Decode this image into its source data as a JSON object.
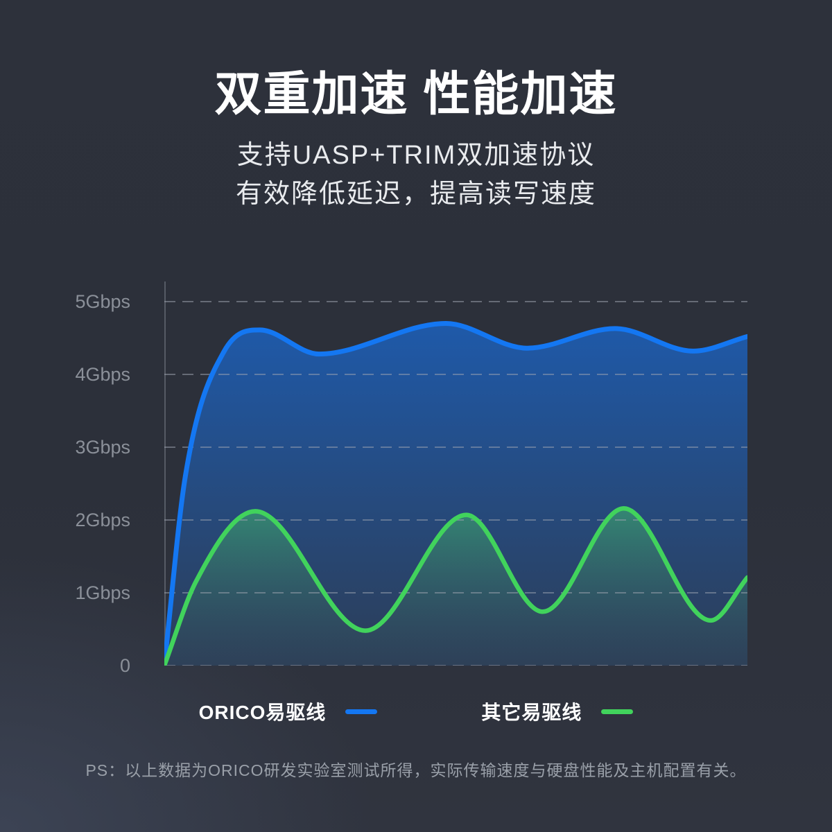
{
  "page": {
    "title": "双重加速 性能加速",
    "subtitle_line1": "支持UASP+TRIM双加速协议",
    "subtitle_line2": "有效降低延迟，提高读写速度",
    "footer_note": "PS：以上数据为ORICO研发实验室测试所得，实际传输速度与硬盘性能及主机配置有关。"
  },
  "colors": {
    "background": "#2c303a",
    "accent_blue": "#1477f2",
    "accent_green": "#41d35c",
    "grid_line": "rgba(160,166,177,0.5)",
    "axis_line": "rgba(150,157,168,0.4)",
    "axis_label": "#8b9099"
  },
  "legend": {
    "items": [
      {
        "label": "ORICO易驱线",
        "color": "#1477f2"
      },
      {
        "label": "其它易驱线",
        "color": "#41d35c"
      }
    ]
  },
  "chart_data": {
    "type": "area",
    "title": "",
    "xlabel": "",
    "ylabel": "Gbps",
    "ylim": [
      0,
      5
    ],
    "grid": "horizontal dashed",
    "legend_position": "bottom",
    "y_ticks": [
      {
        "value": 5,
        "label": "5Gbps"
      },
      {
        "value": 4,
        "label": "4Gbps"
      },
      {
        "value": 3,
        "label": "3Gbps"
      },
      {
        "value": 2,
        "label": "2Gbps"
      },
      {
        "value": 1,
        "label": "1Gbps"
      },
      {
        "value": 0,
        "label": "0"
      }
    ],
    "x_unit": "percent_of_timeline",
    "y_unit": "Gbps",
    "series": [
      {
        "name": "ORICO易驱线",
        "color": "#1477f2",
        "points": [
          [
            0,
            0
          ],
          [
            3.6,
            2.6
          ],
          [
            10.2,
            4.31
          ],
          [
            16.4,
            4.61
          ],
          [
            26.5,
            4.28
          ],
          [
            48.3,
            4.7
          ],
          [
            62.2,
            4.36
          ],
          [
            77.3,
            4.63
          ],
          [
            90.7,
            4.32
          ],
          [
            100,
            4.52
          ]
        ]
      },
      {
        "name": "其它易驱线",
        "color": "#41d35c",
        "points": [
          [
            0,
            0
          ],
          [
            5.4,
            1.15
          ],
          [
            15.6,
            2.12
          ],
          [
            34.5,
            0.48
          ],
          [
            51.8,
            2.07
          ],
          [
            64.9,
            0.74
          ],
          [
            78.8,
            2.16
          ],
          [
            93.7,
            0.62
          ],
          [
            100,
            1.21
          ]
        ]
      }
    ]
  }
}
